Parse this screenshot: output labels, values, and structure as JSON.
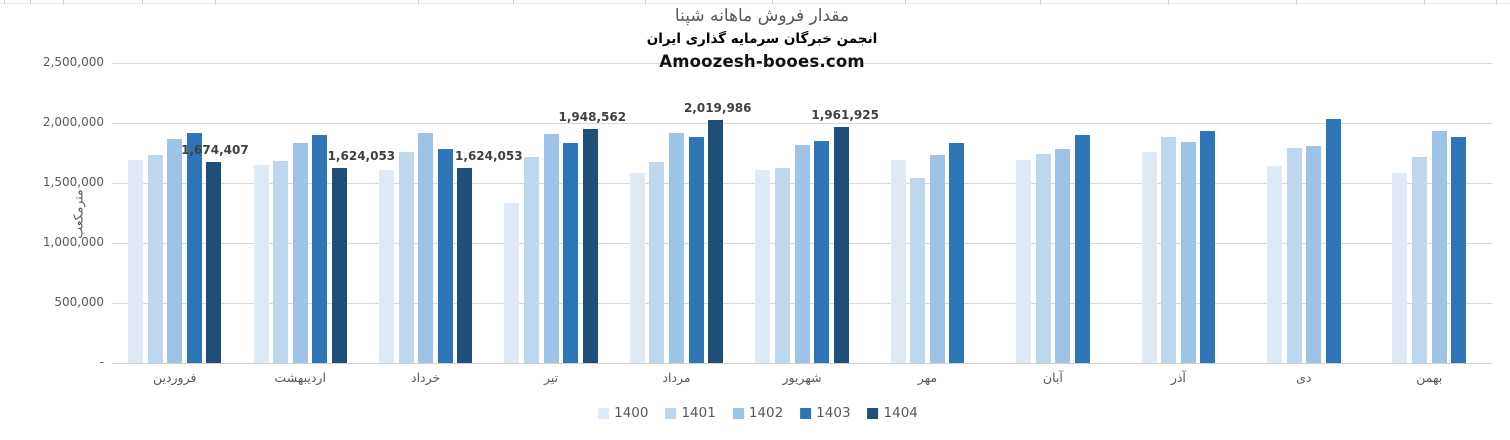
{
  "header": {
    "title": "مقدار فروش ماهانه شپنا",
    "subtitle": "انجمن خبرگان سرمایه گذاری ایران",
    "watermark": "Amoozesh-booes.com"
  },
  "chart_data": {
    "type": "bar",
    "title": "مقدار فروش ماهانه شپنا",
    "subtitle": "انجمن خبرگان سرمایه گذاری ایران",
    "watermark": "Amoozesh-booes.com",
    "ylabel": "مترمکعب",
    "xlabel": "",
    "ylim": [
      0,
      2500000
    ],
    "grid": true,
    "legend_position": "bottom",
    "y_ticks": [
      {
        "label": "2,500,000",
        "value": 2500000
      },
      {
        "label": "2,000,000",
        "value": 2000000
      },
      {
        "label": "1,500,000",
        "value": 1500000
      },
      {
        "label": "1,000,000",
        "value": 1000000
      },
      {
        "label": "500,000",
        "value": 500000
      },
      {
        "label": "-",
        "value": 0
      }
    ],
    "categories": [
      "فروردین",
      "اردیبهشت",
      "خرداد",
      "تیر",
      "مرداد",
      "شهریور",
      "مهر",
      "آبان",
      "آذر",
      "دی",
      "بهمن"
    ],
    "series": [
      {
        "name": "1400",
        "color": "#deebf7",
        "data_labels": false,
        "values": [
          1690000,
          1645000,
          1605000,
          1330000,
          1578000,
          1605000,
          1690000,
          1688000,
          1758000,
          1640000,
          1583000
        ]
      },
      {
        "name": "1401",
        "color": "#bdd7ee",
        "data_labels": false,
        "values": [
          1731000,
          1681000,
          1752000,
          1711000,
          1670000,
          1620000,
          1542000,
          1739000,
          1878000,
          1786000,
          1711000
        ]
      },
      {
        "name": "1402",
        "color": "#9dc3e6",
        "data_labels": false,
        "values": [
          1864000,
          1831000,
          1911000,
          1903000,
          1914000,
          1814000,
          1731000,
          1781000,
          1836000,
          1806000,
          1931000
        ]
      },
      {
        "name": "1403",
        "color": "#2e75b6",
        "data_labels": false,
        "values": [
          1917000,
          1900000,
          1778000,
          1828000,
          1883000,
          1850000,
          1828000,
          1897000,
          1931000,
          2031000,
          1883000
        ]
      },
      {
        "name": "1404",
        "color": "#1f4e79",
        "data_labels": true,
        "values": [
          1674407,
          1624053,
          1624053,
          1948562,
          2019986,
          1961925,
          null,
          null,
          null,
          null,
          null
        ],
        "value_labels": [
          "1,674,407",
          "1,624,053",
          "1,624,053",
          "1,948,562",
          "2,019,986",
          "1,961,925"
        ]
      }
    ]
  }
}
